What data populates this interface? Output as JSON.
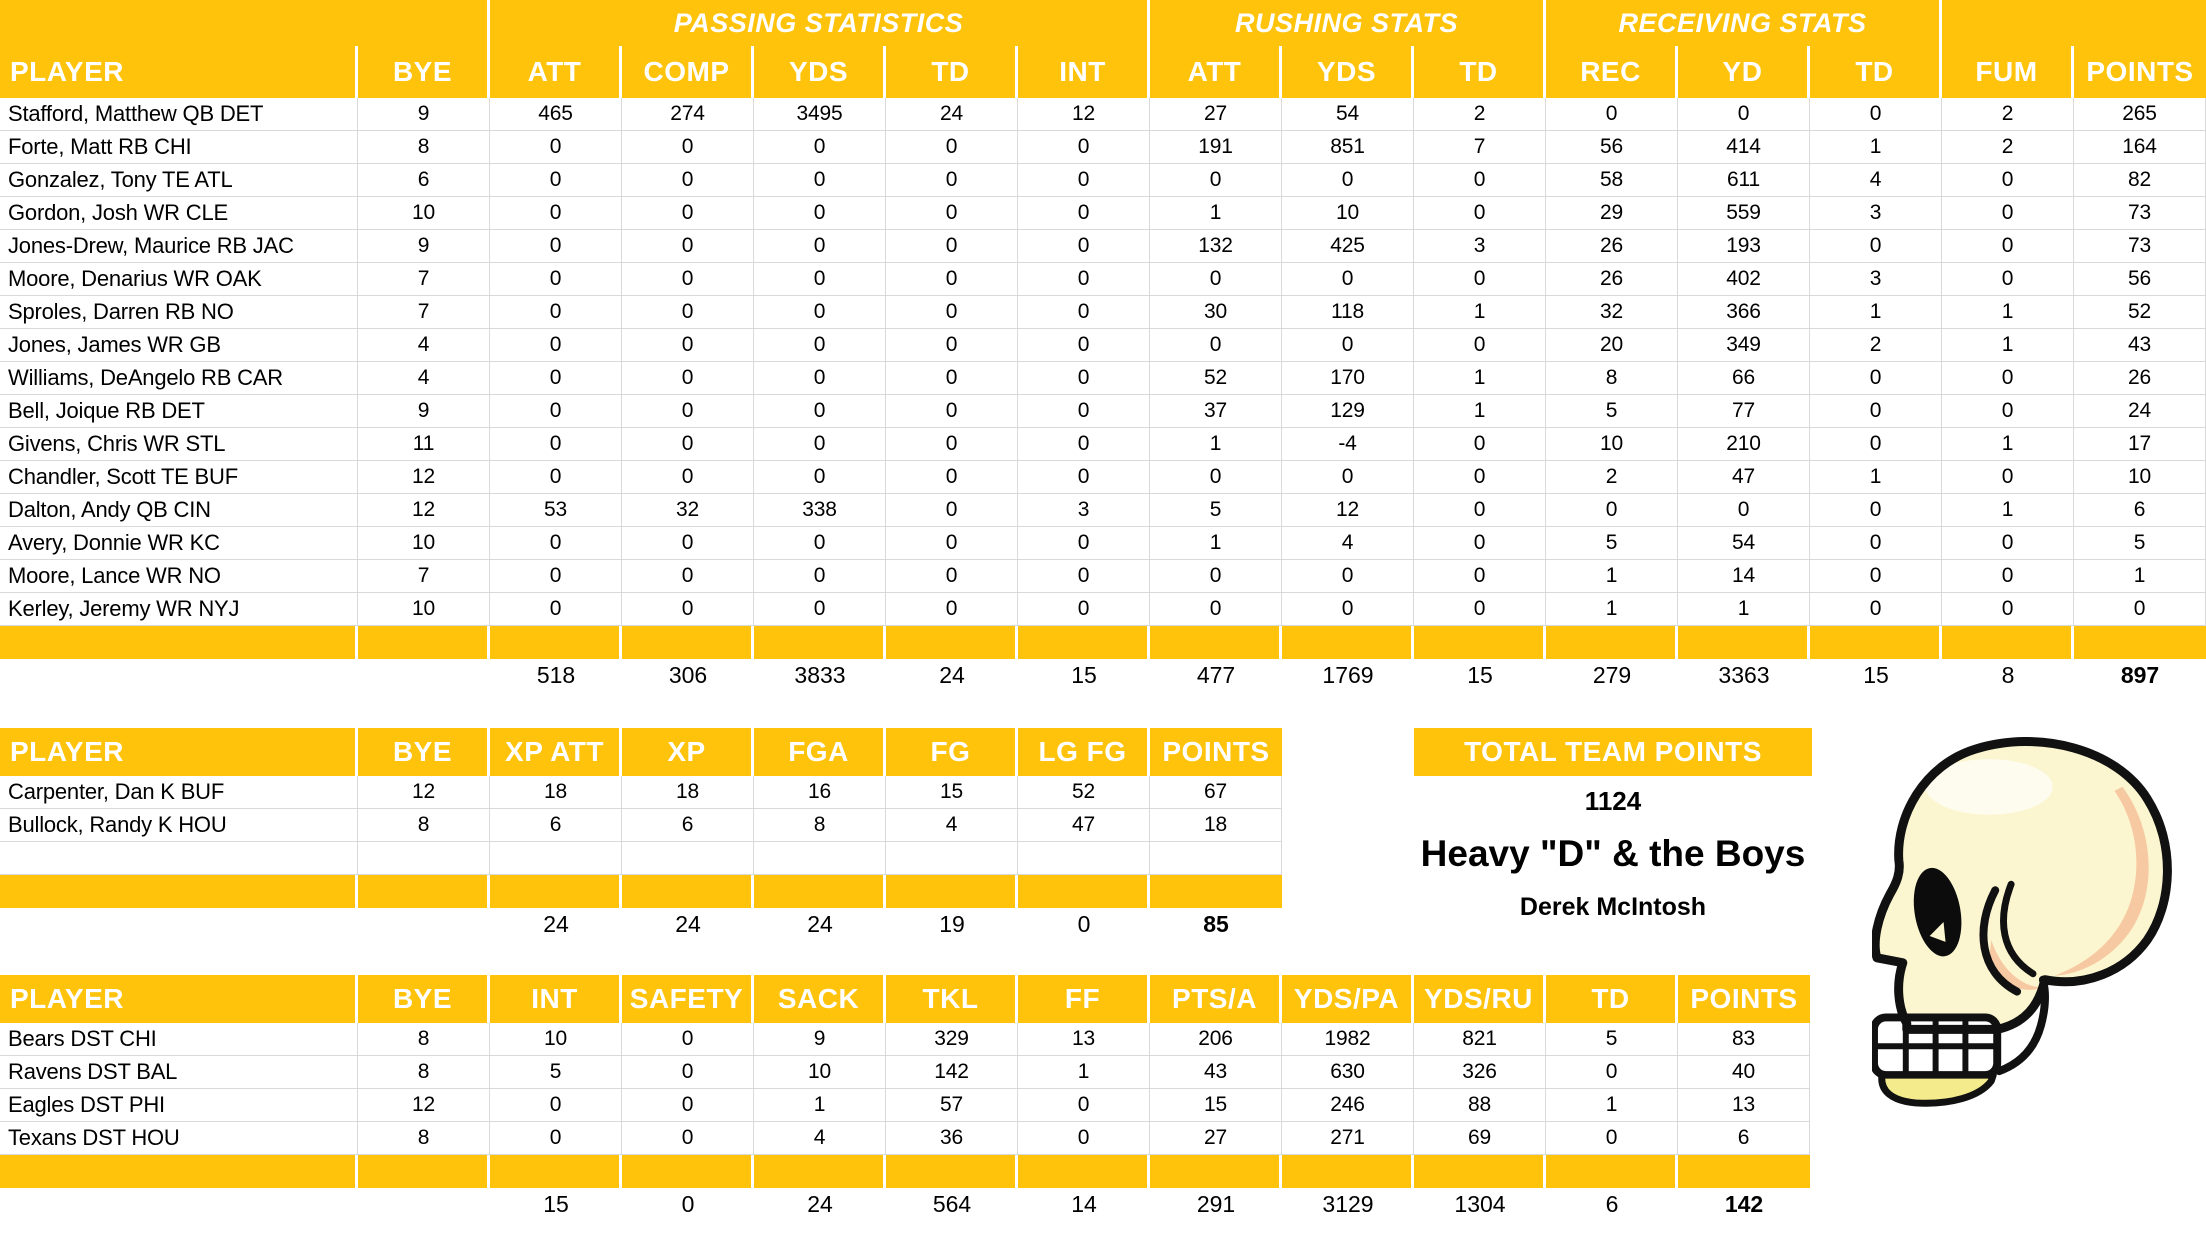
{
  "colors": {
    "accent": "#FFC30B",
    "header_text": "#FFFFFF",
    "gridline": "#D9D9D9",
    "text": "#000000",
    "skull_bone": "#FBF6CF",
    "skull_shade": "#F7C9A2",
    "skull_jaw": "#F4EC8C",
    "skull_outline": "#111111"
  },
  "images": {
    "team_logo": "cartoon-skull-side-profile"
  },
  "offense": {
    "group_headers": [
      {
        "label": "",
        "span": 2
      },
      {
        "label": "PASSING STATISTICS",
        "span": 5
      },
      {
        "label": "RUSHING STATS",
        "span": 3
      },
      {
        "label": "RECEIVING STATS",
        "span": 3
      },
      {
        "label": "",
        "span": 2
      }
    ],
    "columns": [
      "PLAYER",
      "BYE",
      "ATT",
      "COMP",
      "YDS",
      "TD",
      "INT",
      "ATT",
      "YDS",
      "TD",
      "REC",
      "YD",
      "TD",
      "FUM",
      "POINTS"
    ],
    "rows": [
      [
        "Stafford, Matthew QB DET",
        9,
        465,
        274,
        3495,
        24,
        12,
        27,
        54,
        2,
        0,
        0,
        0,
        2,
        265
      ],
      [
        "Forte, Matt RB CHI",
        8,
        0,
        0,
        0,
        0,
        0,
        191,
        851,
        7,
        56,
        414,
        1,
        2,
        164
      ],
      [
        "Gonzalez, Tony TE ATL",
        6,
        0,
        0,
        0,
        0,
        0,
        0,
        0,
        0,
        58,
        611,
        4,
        0,
        82
      ],
      [
        "Gordon, Josh WR CLE",
        10,
        0,
        0,
        0,
        0,
        0,
        1,
        10,
        0,
        29,
        559,
        3,
        0,
        73
      ],
      [
        "Jones-Drew, Maurice RB JAC",
        9,
        0,
        0,
        0,
        0,
        0,
        132,
        425,
        3,
        26,
        193,
        0,
        0,
        73
      ],
      [
        "Moore, Denarius WR OAK",
        7,
        0,
        0,
        0,
        0,
        0,
        0,
        0,
        0,
        26,
        402,
        3,
        0,
        56
      ],
      [
        "Sproles, Darren RB NO",
        7,
        0,
        0,
        0,
        0,
        0,
        30,
        118,
        1,
        32,
        366,
        1,
        1,
        52
      ],
      [
        "Jones, James WR GB",
        4,
        0,
        0,
        0,
        0,
        0,
        0,
        0,
        0,
        20,
        349,
        2,
        1,
        43
      ],
      [
        "Williams, DeAngelo RB CAR",
        4,
        0,
        0,
        0,
        0,
        0,
        52,
        170,
        1,
        8,
        66,
        0,
        0,
        26
      ],
      [
        "Bell, Joique RB DET",
        9,
        0,
        0,
        0,
        0,
        0,
        37,
        129,
        1,
        5,
        77,
        0,
        0,
        24
      ],
      [
        "Givens, Chris WR STL",
        11,
        0,
        0,
        0,
        0,
        0,
        1,
        -4,
        0,
        10,
        210,
        0,
        1,
        17
      ],
      [
        "Chandler, Scott TE BUF",
        12,
        0,
        0,
        0,
        0,
        0,
        0,
        0,
        0,
        2,
        47,
        1,
        0,
        10
      ],
      [
        "Dalton, Andy QB CIN",
        12,
        53,
        32,
        338,
        0,
        3,
        5,
        12,
        0,
        0,
        0,
        0,
        1,
        6
      ],
      [
        "Avery, Donnie WR KC",
        10,
        0,
        0,
        0,
        0,
        0,
        1,
        4,
        0,
        5,
        54,
        0,
        0,
        5
      ],
      [
        "Moore, Lance WR NO",
        7,
        0,
        0,
        0,
        0,
        0,
        0,
        0,
        0,
        1,
        14,
        0,
        0,
        1
      ],
      [
        "Kerley, Jeremy WR NYJ",
        10,
        0,
        0,
        0,
        0,
        0,
        0,
        0,
        0,
        1,
        1,
        0,
        0,
        0
      ]
    ],
    "totals": [
      "",
      "",
      518,
      306,
      3833,
      24,
      15,
      477,
      1769,
      15,
      279,
      3363,
      15,
      8,
      897
    ]
  },
  "kickers": {
    "columns": [
      "PLAYER",
      "BYE",
      "XP ATT",
      "XP",
      "FGA",
      "FG",
      "LG FG",
      "POINTS"
    ],
    "rows": [
      [
        "Carpenter, Dan K BUF",
        12,
        18,
        18,
        16,
        15,
        52,
        67
      ],
      [
        "Bullock, Randy K HOU",
        8,
        6,
        6,
        8,
        4,
        47,
        18
      ],
      [
        "",
        "",
        "",
        "",
        "",
        "",
        "",
        ""
      ]
    ],
    "totals": [
      "",
      "",
      24,
      24,
      24,
      19,
      0,
      85
    ]
  },
  "defense": {
    "columns": [
      "PLAYER",
      "BYE",
      "INT",
      "SAFETY",
      "SACK",
      "TKL",
      "FF",
      "PTS/A",
      "YDS/PA",
      "YDS/RU",
      "TD",
      "POINTS"
    ],
    "rows": [
      [
        "Bears DST CHI",
        8,
        10,
        0,
        9,
        329,
        13,
        206,
        1982,
        821,
        5,
        83
      ],
      [
        "Ravens DST BAL",
        8,
        5,
        0,
        10,
        142,
        1,
        43,
        630,
        326,
        0,
        40
      ],
      [
        "Eagles DST PHI",
        12,
        0,
        0,
        1,
        57,
        0,
        15,
        246,
        88,
        1,
        13
      ],
      [
        "Texans DST HOU",
        8,
        0,
        0,
        4,
        36,
        0,
        27,
        271,
        69,
        0,
        6
      ]
    ],
    "totals": [
      "",
      "",
      15,
      0,
      24,
      564,
      14,
      291,
      3129,
      1304,
      6,
      142
    ]
  },
  "team_summary": {
    "title": "TOTAL TEAM POINTS",
    "points": "1124",
    "team_name": "Heavy \"D\" & the Boys",
    "owner": "Derek McIntosh"
  }
}
